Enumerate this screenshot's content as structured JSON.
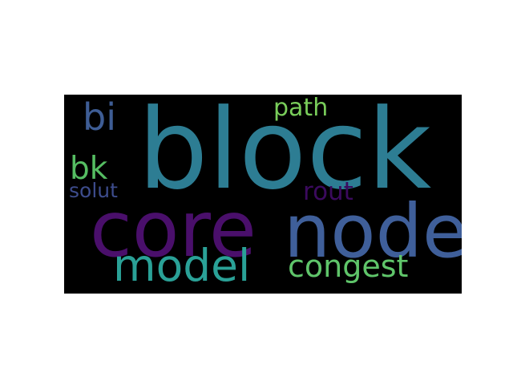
{
  "words": {
    "block": {
      "text": "block",
      "color": "#2d7d93"
    },
    "core": {
      "text": "core",
      "color": "#4a0f6b"
    },
    "node": {
      "text": "node",
      "color": "#3f5f9a"
    },
    "model": {
      "text": "model",
      "color": "#2aa197"
    },
    "congest": {
      "text": "congest",
      "color": "#5fc56a"
    },
    "bi": {
      "text": "bi",
      "color": "#3e5d95"
    },
    "path": {
      "text": "path",
      "color": "#79cd5a"
    },
    "bk": {
      "text": "bk",
      "color": "#55bd62"
    },
    "rout": {
      "text": "rout",
      "color": "#3b0a5e"
    },
    "solut": {
      "text": "solut",
      "color": "#3d4c8c"
    }
  },
  "colors": {
    "background": "#000000",
    "page": "#ffffff"
  }
}
